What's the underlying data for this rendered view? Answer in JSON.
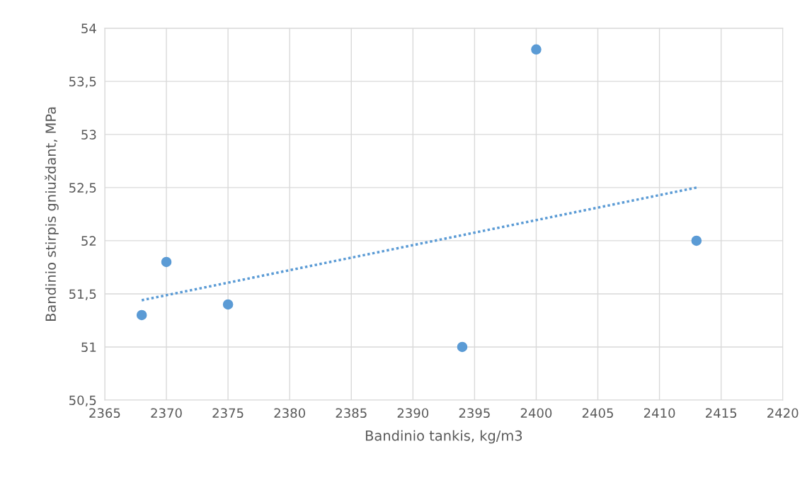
{
  "chart_data": {
    "type": "scatter",
    "xlabel": "Bandinio tankis, kg/m3",
    "ylabel": "Bandinio stirpis gniuždant, MPa",
    "grid": true,
    "marker": "circle",
    "xlim": [
      2365,
      2420
    ],
    "xticks": [
      2365,
      2370,
      2375,
      2380,
      2385,
      2390,
      2395,
      2400,
      2405,
      2410,
      2415,
      2420
    ],
    "ylim": [
      50.5,
      54
    ],
    "yticks": [
      {
        "value": 50.5,
        "label": "50,5"
      },
      {
        "value": 51,
        "label": "51"
      },
      {
        "value": 51.5,
        "label": "51,5"
      },
      {
        "value": 52,
        "label": "52"
      },
      {
        "value": 52.5,
        "label": "52,5"
      },
      {
        "value": 53,
        "label": "53"
      },
      {
        "value": 53.5,
        "label": "53,5"
      },
      {
        "value": 54,
        "label": "54"
      }
    ],
    "series": [
      {
        "color": "#5b9bd5",
        "x": [
          2368,
          2370,
          2375,
          2394,
          2400,
          2413
        ],
        "values": [
          51.3,
          51.8,
          51.4,
          51.0,
          53.8,
          52.0
        ]
      },
      {
        "type": "line",
        "color": "#5b9bd5",
        "line_style": "dotted",
        "marker": "none",
        "x": [
          2368,
          2413
        ],
        "values": [
          51.44,
          52.5
        ]
      }
    ]
  }
}
